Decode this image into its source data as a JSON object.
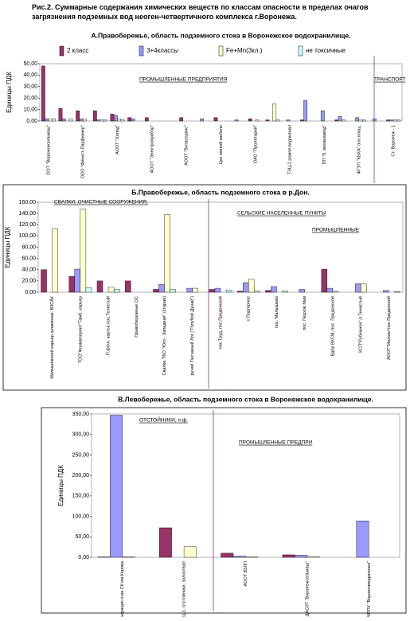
{
  "caption": "Рис.2.     Суммарные содержания химических веществ по классам опасности в пределах очагов загрязнения подземных вод неоген-четвертичного комплекса г.Воронежа.",
  "chart_data": [
    {
      "type": "bar",
      "title": "А.Правобережье, область подземного стока в Воронежское водохранилище.",
      "ylabel": "Единицы ПДК",
      "categories": [
        "ООТ \"Воронежсельмаш\"",
        null,
        "ООО \"Финист-Парфюмер\"",
        null,
        "АООТ \"Холод\"",
        null,
        "АООТ \"Электроприбор\"",
        null,
        "АООТ \"Витасервис\"",
        null,
        "Цех мягкой мебели",
        null,
        "ОАО \"Пролетарий\"",
        null,
        "ТЭЦ-2 ромпл.водоканал",
        null,
        "ПП \"9. механзавод\"",
        null,
        "ФГУП \"КБХА\" осн.площ.",
        null,
        "Ст. Воронеж - 1"
      ],
      "series": [
        {
          "name": "2 класс",
          "color": "#993366",
          "values": [
            48,
            11,
            9,
            9,
            6,
            3,
            3,
            0,
            3,
            0,
            3,
            0,
            2,
            1,
            0,
            1,
            0,
            1,
            0,
            0,
            1
          ]
        },
        {
          "name": "3+4классы",
          "color": "#9999ff",
          "values": [
            2,
            2,
            2,
            1,
            5,
            2,
            0,
            0,
            0,
            2,
            0,
            1,
            0,
            0,
            1,
            18,
            9,
            4,
            3,
            2,
            1
          ]
        },
        {
          "name": "Fe+Mn(3кл.)",
          "color": "#ffffcc",
          "values": [
            2,
            0,
            2,
            1,
            2,
            0,
            0,
            0,
            0,
            0,
            0,
            0,
            1,
            15,
            0,
            0,
            0,
            1,
            1,
            0,
            1
          ]
        },
        {
          "name": "не токсичные",
          "color": "#ccffff",
          "values": [
            2,
            2,
            0,
            1,
            1,
            0,
            0,
            0,
            0,
            0,
            0,
            0,
            0,
            1,
            0,
            0,
            0,
            0,
            1,
            0,
            1
          ]
        }
      ],
      "ylim": [
        0,
        50
      ],
      "yticks": [
        {
          "value": 0,
          "label": "0,00"
        },
        {
          "value": 10,
          "label": "10,00"
        },
        {
          "value": 20,
          "label": "20,00"
        },
        {
          "value": 30,
          "label": "30,00"
        },
        {
          "value": 40,
          "label": "40,00"
        },
        {
          "value": 50,
          "label": "50,00"
        }
      ],
      "legend": "top",
      "annotations": [
        "ПРОМЫШЛЕННЫЕ  ПРЕДПРИЯТИЯ",
        "ТРАНСПОРТ"
      ]
    },
    {
      "type": "bar",
      "title": "Б.Правобережье,  область подземного стока в р.Дон.",
      "ylabel": "Единицы ПДК",
      "categories": [
        "Малышёвский карьер шламонак. ВЗСАК",
        "ТОО\"Формаперлит\"Тамб. карьер",
        "П.ф(пл. карты) пос.Тенистый",
        "Правобережные ОС",
        "Свалка ТБО \"Юго - Западная\" (старая)",
        "ручей Песчаный Лог (\"Голубой Дунай\")",
        "пос.Труд, пос.Придонской",
        "с.Подгорное",
        "пос. Малышево",
        "пос. Перхов Мая",
        "Вдбр ВКСМ, пос. Придонской",
        "КСП\"Рубежное\",п.Тенистый",
        "АООТ\"Молоко\"пос.Придонской"
      ],
      "series": [
        {
          "name": "2 класс",
          "color": "#993366",
          "values": [
            40,
            28,
            20,
            20,
            5,
            0,
            5,
            2,
            3,
            0,
            41,
            0,
            0
          ]
        },
        {
          "name": "3+4классы",
          "color": "#9999ff",
          "values": [
            0,
            41,
            0,
            0,
            14,
            7,
            7,
            17,
            10,
            5,
            7,
            15,
            3
          ]
        },
        {
          "name": "Fe+Mn(3кл.)",
          "color": "#ffffcc",
          "values": [
            113,
            148,
            9,
            0,
            138,
            7,
            0,
            23,
            0,
            0,
            2,
            15,
            0
          ]
        },
        {
          "name": "не токсичные",
          "color": "#ccffff",
          "values": [
            0,
            8,
            5,
            0,
            5,
            0,
            4,
            2,
            2,
            0,
            0,
            0,
            1
          ]
        }
      ],
      "ylim": [
        0,
        160
      ],
      "yticks": [
        {
          "value": 0,
          "label": "0,00"
        },
        {
          "value": 20,
          "label": "20,00"
        },
        {
          "value": 40,
          "label": "40,00"
        },
        {
          "value": 60,
          "label": "60,00"
        },
        {
          "value": 80,
          "label": "80,00"
        },
        {
          "value": 100,
          "label": "100,00"
        },
        {
          "value": 120,
          "label": "120,00"
        },
        {
          "value": 140,
          "label": "140,00"
        },
        {
          "value": 160,
          "label": "160,00"
        }
      ],
      "legend": false,
      "annotations": [
        "СВАЛКИ, ОЧИСТНЫЕ СООРУЖЕНИЯ,",
        "СЕЛЬСКИЕ  НАСЕЛЕННЫЕ  ПУНКТЫ",
        "ПРОМЫШЛЕННЫЕ"
      ]
    },
    {
      "type": "bar",
      "title": "В.Левобережье, область подземного стока в Воронежское водохранилище.",
      "ylabel": "Единицы ПДК",
      "categories": [
        "Поля фильтрации о-ва СК им.Кирова",
        "ТЭЦ-1, отстойники, золоотвал",
        "АООТ ВЗЛП",
        "ДАОЗТ \"Воронежсельмаш\"",
        "ВПС-9 кок.фл. МППУ \"Воронежводоканал\""
      ],
      "series": [
        {
          "name": "2 класс",
          "color": "#993366",
          "values": [
            1,
            72,
            10,
            6,
            0
          ]
        },
        {
          "name": "3+4классы",
          "color": "#9999ff",
          "values": [
            347,
            0,
            3,
            5,
            89
          ]
        },
        {
          "name": "Fe+Mn(3кл.)",
          "color": "#ffffcc",
          "values": [
            1,
            26,
            1,
            2,
            0
          ]
        },
        {
          "name": "не токсичные",
          "color": "#ccffff",
          "values": [
            0,
            0,
            0,
            0,
            0
          ]
        }
      ],
      "ylim": [
        0,
        350
      ],
      "yticks": [
        {
          "value": 0,
          "label": "0,00"
        },
        {
          "value": 50,
          "label": "50,00"
        },
        {
          "value": 100,
          "label": "100,00"
        },
        {
          "value": 150,
          "label": "150,00"
        },
        {
          "value": 200,
          "label": "200,00"
        },
        {
          "value": 250,
          "label": "250,00"
        },
        {
          "value": 300,
          "label": "300,00"
        },
        {
          "value": 350,
          "label": "350,00"
        }
      ],
      "legend": false,
      "annotations": [
        "ОТСТОЙНИКИ,  п.ф.",
        "ПРОМЫШЛЕННЫЕ ПРЕДПРИ"
      ]
    }
  ]
}
